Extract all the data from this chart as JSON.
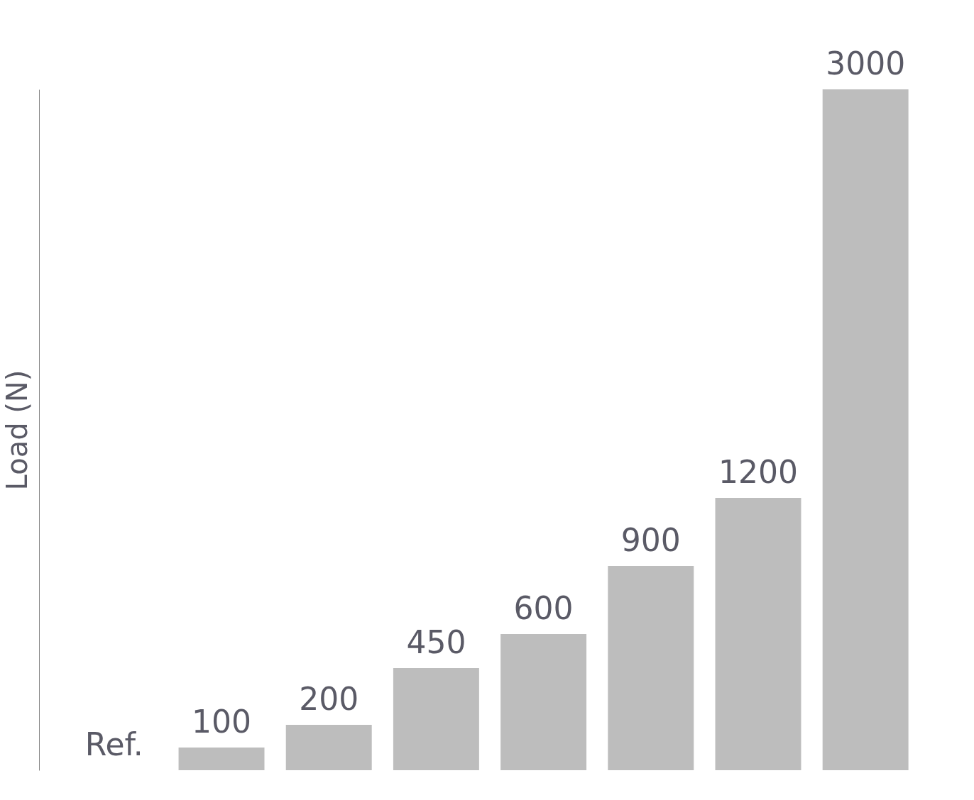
{
  "chart_data": {
    "type": "bar",
    "ylabel": "Load (N)",
    "categories": [
      null,
      null,
      null,
      null,
      null,
      null,
      null
    ],
    "values": [
      100,
      200,
      450,
      600,
      900,
      1200,
      3000
    ],
    "data_labels": true,
    "annotations": [
      "Ref."
    ],
    "color": "#bdbdbd",
    "tick_labels": false,
    "grid": false
  }
}
